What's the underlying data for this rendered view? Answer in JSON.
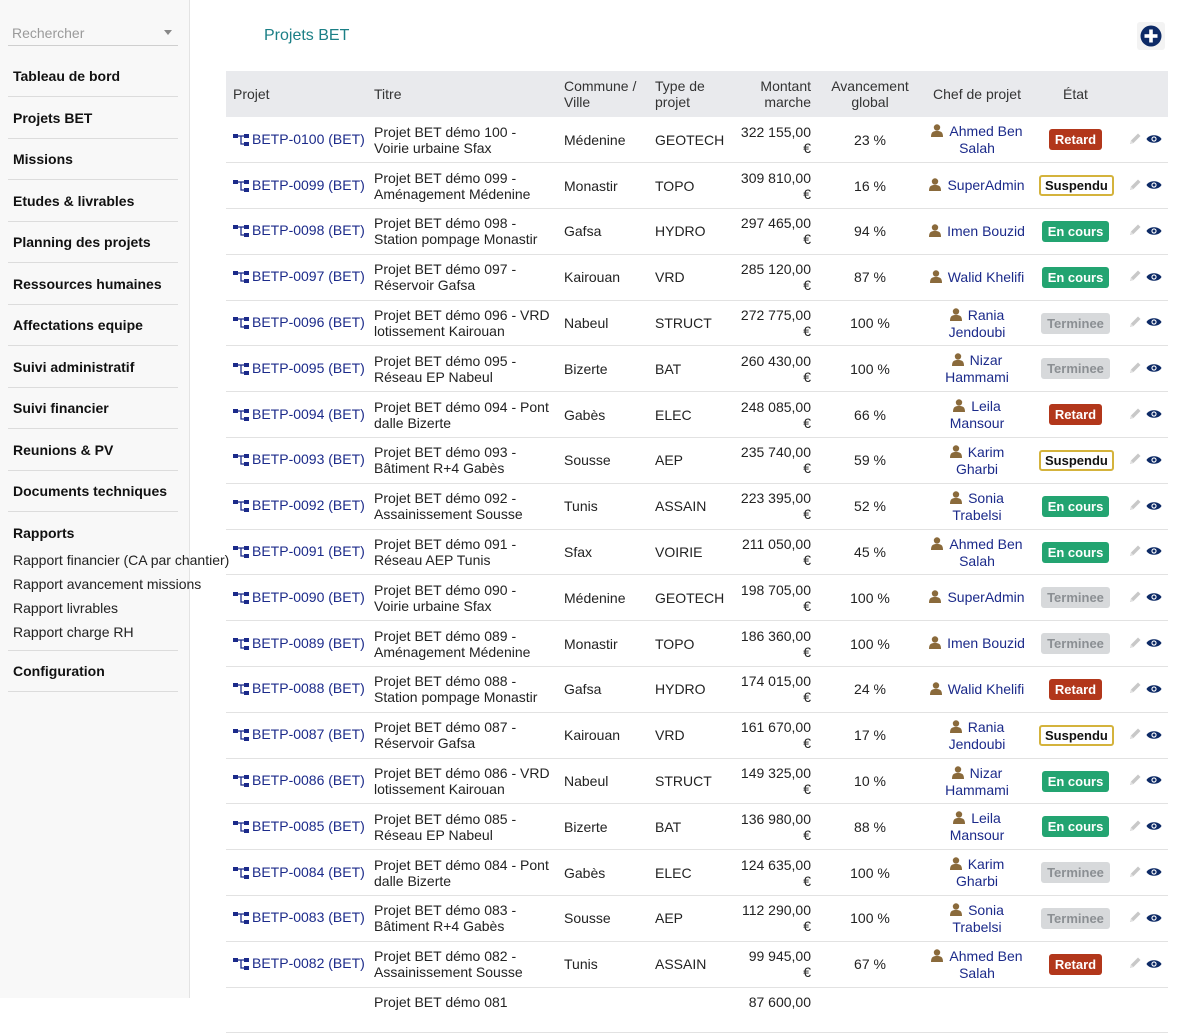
{
  "search": {
    "placeholder": "Rechercher"
  },
  "menu": {
    "sections": [
      "Tableau de bord",
      "Projets BET",
      "Missions",
      "Etudes & livrables",
      "Planning des projets",
      "Ressources humaines",
      "Affectations equipe",
      "Suivi administratif",
      "Suivi financier",
      "Reunions & PV",
      "Documents techniques"
    ],
    "rapports": {
      "label": "Rapports",
      "items": [
        "Rapport financier (CA par chantier)",
        "Rapport avancement missions",
        "Rapport livrables",
        "Rapport charge RH"
      ]
    },
    "configuration": "Configuration"
  },
  "page": {
    "title": "Projets BET",
    "add_icon": "plus-circle-icon"
  },
  "table": {
    "headers": {
      "projet": "Projet",
      "titre": "Titre",
      "commune": "Commune / Ville",
      "type": "Type de projet",
      "montant": "Montant marche",
      "avancement": "Avancement global",
      "chef": "Chef de projet",
      "etat": "État"
    },
    "rows": [
      {
        "ref": "BETP-0100 (BET)",
        "titre": "Projet BET démo 100 - Voirie urbaine Sfax",
        "commune": "Médenine",
        "type": "GEOTECH",
        "montant": "322 155,00 €",
        "avancement": "23 %",
        "chef": "Ahmed Ben Salah",
        "etat": "Retard",
        "etat_class": "retard"
      },
      {
        "ref": "BETP-0099 (BET)",
        "titre": "Projet BET démo 099 - Aménagement Médenine",
        "commune": "Monastir",
        "type": "TOPO",
        "montant": "309 810,00 €",
        "avancement": "16 %",
        "chef": "SuperAdmin",
        "etat": "Suspendu",
        "etat_class": "suspendu"
      },
      {
        "ref": "BETP-0098 (BET)",
        "titre": "Projet BET démo 098 - Station pompage Monastir",
        "commune": "Gafsa",
        "type": "HYDRO",
        "montant": "297 465,00 €",
        "avancement": "94 %",
        "chef": "Imen Bouzid",
        "etat": "En cours",
        "etat_class": "encours"
      },
      {
        "ref": "BETP-0097 (BET)",
        "titre": "Projet BET démo 097 - Réservoir Gafsa",
        "commune": "Kairouan",
        "type": "VRD",
        "montant": "285 120,00 €",
        "avancement": "87 %",
        "chef": "Walid Khelifi",
        "etat": "En cours",
        "etat_class": "encours"
      },
      {
        "ref": "BETP-0096 (BET)",
        "titre": "Projet BET démo 096 - VRD lotissement Kairouan",
        "commune": "Nabeul",
        "type": "STRUCT",
        "montant": "272 775,00 €",
        "avancement": "100 %",
        "chef": "Rania Jendoubi",
        "etat": "Terminee",
        "etat_class": "terminee"
      },
      {
        "ref": "BETP-0095 (BET)",
        "titre": "Projet BET démo 095 - Réseau EP Nabeul",
        "commune": "Bizerte",
        "type": "BAT",
        "montant": "260 430,00 €",
        "avancement": "100 %",
        "chef": "Nizar Hammami",
        "etat": "Terminee",
        "etat_class": "terminee"
      },
      {
        "ref": "BETP-0094 (BET)",
        "titre": "Projet BET démo 094 - Pont dalle Bizerte",
        "commune": "Gabès",
        "type": "ELEC",
        "montant": "248 085,00 €",
        "avancement": "66 %",
        "chef": "Leila Mansour",
        "etat": "Retard",
        "etat_class": "retard"
      },
      {
        "ref": "BETP-0093 (BET)",
        "titre": "Projet BET démo 093 - Bâtiment R+4 Gabès",
        "commune": "Sousse",
        "type": "AEP",
        "montant": "235 740,00 €",
        "avancement": "59 %",
        "chef": "Karim Gharbi",
        "etat": "Suspendu",
        "etat_class": "suspendu"
      },
      {
        "ref": "BETP-0092 (BET)",
        "titre": "Projet BET démo 092 - Assainissement Sousse",
        "commune": "Tunis",
        "type": "ASSAIN",
        "montant": "223 395,00 €",
        "avancement": "52 %",
        "chef": "Sonia Trabelsi",
        "etat": "En cours",
        "etat_class": "encours"
      },
      {
        "ref": "BETP-0091 (BET)",
        "titre": "Projet BET démo 091 - Réseau AEP Tunis",
        "commune": "Sfax",
        "type": "VOIRIE",
        "montant": "211 050,00 €",
        "avancement": "45 %",
        "chef": "Ahmed Ben Salah",
        "etat": "En cours",
        "etat_class": "encours"
      },
      {
        "ref": "BETP-0090 (BET)",
        "titre": "Projet BET démo 090 - Voirie urbaine Sfax",
        "commune": "Médenine",
        "type": "GEOTECH",
        "montant": "198 705,00 €",
        "avancement": "100 %",
        "chef": "SuperAdmin",
        "etat": "Terminee",
        "etat_class": "terminee"
      },
      {
        "ref": "BETP-0089 (BET)",
        "titre": "Projet BET démo 089 - Aménagement Médenine",
        "commune": "Monastir",
        "type": "TOPO",
        "montant": "186 360,00 €",
        "avancement": "100 %",
        "chef": "Imen Bouzid",
        "etat": "Terminee",
        "etat_class": "terminee"
      },
      {
        "ref": "BETP-0088 (BET)",
        "titre": "Projet BET démo 088 - Station pompage Monastir",
        "commune": "Gafsa",
        "type": "HYDRO",
        "montant": "174 015,00 €",
        "avancement": "24 %",
        "chef": "Walid Khelifi",
        "etat": "Retard",
        "etat_class": "retard"
      },
      {
        "ref": "BETP-0087 (BET)",
        "titre": "Projet BET démo 087 - Réservoir Gafsa",
        "commune": "Kairouan",
        "type": "VRD",
        "montant": "161 670,00 €",
        "avancement": "17 %",
        "chef": "Rania Jendoubi",
        "etat": "Suspendu",
        "etat_class": "suspendu"
      },
      {
        "ref": "BETP-0086 (BET)",
        "titre": "Projet BET démo 086 - VRD lotissement Kairouan",
        "commune": "Nabeul",
        "type": "STRUCT",
        "montant": "149 325,00 €",
        "avancement": "10 %",
        "chef": "Nizar Hammami",
        "etat": "En cours",
        "etat_class": "encours"
      },
      {
        "ref": "BETP-0085 (BET)",
        "titre": "Projet BET démo 085 - Réseau EP Nabeul",
        "commune": "Bizerte",
        "type": "BAT",
        "montant": "136 980,00 €",
        "avancement": "88 %",
        "chef": "Leila Mansour",
        "etat": "En cours",
        "etat_class": "encours"
      },
      {
        "ref": "BETP-0084 (BET)",
        "titre": "Projet BET démo 084 - Pont dalle Bizerte",
        "commune": "Gabès",
        "type": "ELEC",
        "montant": "124 635,00 €",
        "avancement": "100 %",
        "chef": "Karim Gharbi",
        "etat": "Terminee",
        "etat_class": "terminee"
      },
      {
        "ref": "BETP-0083 (BET)",
        "titre": "Projet BET démo 083 - Bâtiment R+4 Gabès",
        "commune": "Sousse",
        "type": "AEP",
        "montant": "112 290,00 €",
        "avancement": "100 %",
        "chef": "Sonia Trabelsi",
        "etat": "Terminee",
        "etat_class": "terminee"
      },
      {
        "ref": "BETP-0082 (BET)",
        "titre": "Projet BET démo 082 - Assainissement Sousse",
        "commune": "Tunis",
        "type": "ASSAIN",
        "montant": "99 945,00 €",
        "avancement": "67 %",
        "chef": "Ahmed Ben Salah",
        "etat": "Retard",
        "etat_class": "retard"
      }
    ],
    "partial_row": {
      "titre": "Projet BET démo 081",
      "montant": "87 600,00"
    }
  },
  "colors": {
    "title": "#1b7f86",
    "link": "#1b2a8a",
    "header_bg": "#e9eaed",
    "retard": "#b2371b",
    "en_cours": "#23a471",
    "terminee_bg": "#d7d9db",
    "suspendu_border": "#d4b33c",
    "user_icon": "#8a6a3b"
  },
  "icons": {
    "row_ref": "sitemap-icon",
    "chef": "user-icon",
    "edit": "pencil-icon",
    "view": "eye-icon"
  }
}
